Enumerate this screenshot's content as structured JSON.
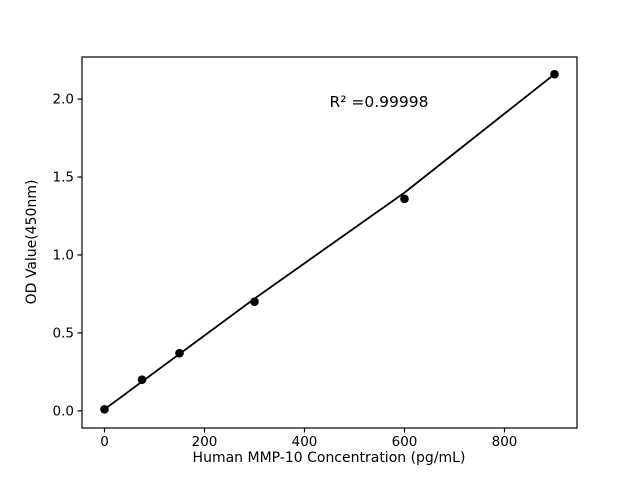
{
  "figure": {
    "background": "#ffffff"
  },
  "chart_data": {
    "type": "scatter",
    "title": "",
    "xlabel": "Human MMP-10 Concentration (pg/mL)",
    "ylabel": "OD Value(450nm)",
    "annotation": "R² =0.99998",
    "x": [
      0,
      75,
      150,
      300,
      600,
      900
    ],
    "y": [
      0.01,
      0.2,
      0.37,
      0.7,
      1.36,
      2.16
    ],
    "fit_line_points": [
      [
        0,
        0.01
      ],
      [
        300,
        0.72
      ],
      [
        600,
        1.4
      ],
      [
        900,
        2.16
      ]
    ],
    "xticks": [
      0,
      200,
      400,
      600,
      800
    ],
    "xtick_labels": [
      "0",
      "200",
      "400",
      "600",
      "800"
    ],
    "yticks": [
      0,
      0.5,
      1.0,
      1.5,
      2.0
    ],
    "ytick_labels": [
      "0.0",
      "0.5",
      "1.0",
      "1.5",
      "2.0"
    ],
    "xlim": [
      -45,
      945
    ],
    "ylim": [
      -0.11,
      2.27
    ],
    "grid": false,
    "line_color": "#000000",
    "marker_color": "#000000",
    "axis_color": "#000000"
  }
}
